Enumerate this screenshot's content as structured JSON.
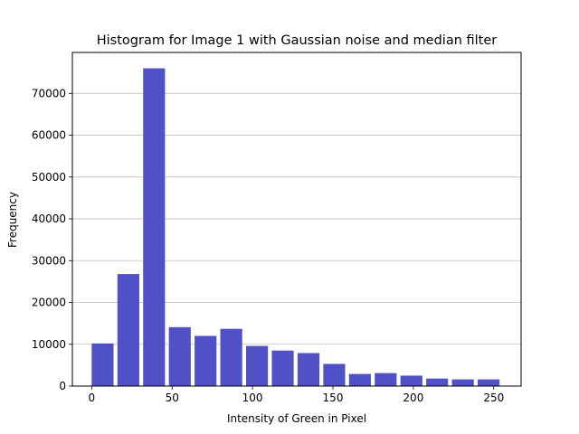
{
  "chart_data": {
    "type": "bar",
    "title": "Histogram for Image 1 with Gaussian noise and median filter",
    "xlabel": "Intensity of Green in Pixel",
    "ylabel": "Frequency",
    "bin_width": 16,
    "bin_starts": [
      0,
      16,
      32,
      48,
      64,
      80,
      96,
      112,
      128,
      144,
      160,
      176,
      192,
      208,
      224,
      240
    ],
    "values": [
      10200,
      26800,
      76000,
      14100,
      12000,
      13700,
      9600,
      8500,
      7900,
      5300,
      2900,
      3100,
      2500,
      1800,
      1600,
      1600
    ],
    "xlim": [
      -12,
      267
    ],
    "ylim": [
      0,
      79800
    ],
    "x_ticks": [
      0,
      50,
      100,
      150,
      200,
      250
    ],
    "y_ticks": [
      0,
      10000,
      20000,
      30000,
      40000,
      50000,
      60000,
      70000
    ],
    "grid": "y",
    "bar_color": "#5050c7"
  }
}
